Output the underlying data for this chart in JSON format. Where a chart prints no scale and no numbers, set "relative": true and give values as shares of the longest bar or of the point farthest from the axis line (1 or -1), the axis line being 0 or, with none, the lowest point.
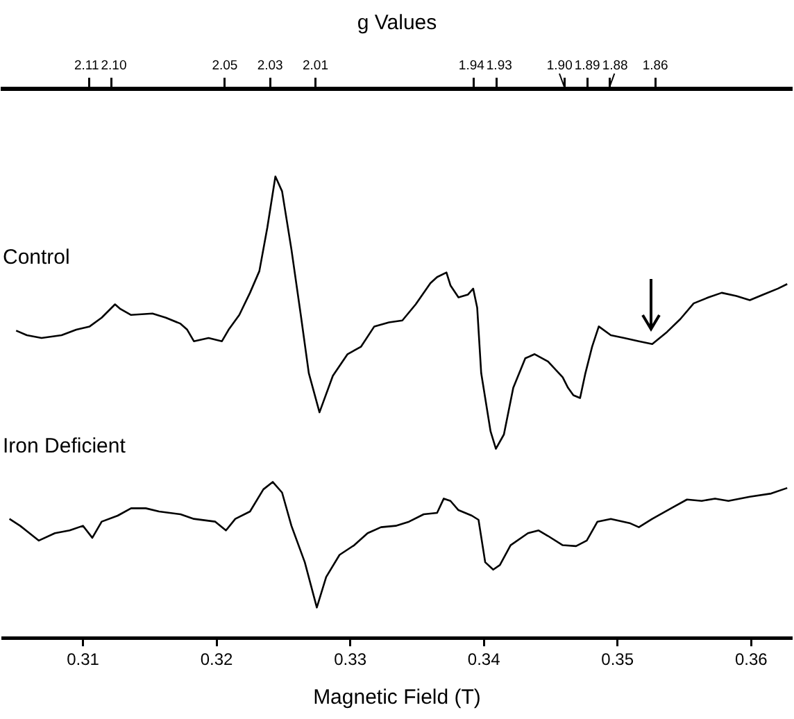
{
  "chart_data": {
    "type": "line",
    "relative": true,
    "x2label": "g Values",
    "xlabel": "Magnetic Field (T)",
    "marker": "none",
    "line_style": "solid",
    "xlim": [
      0.304,
      0.363
    ],
    "xticks": [
      {
        "value": 0.31,
        "label": "0.31"
      },
      {
        "value": 0.32,
        "label": "0.32"
      },
      {
        "value": 0.33,
        "label": "0.33"
      },
      {
        "value": 0.34,
        "label": "0.34"
      },
      {
        "value": 0.35,
        "label": "0.35"
      },
      {
        "value": 0.36,
        "label": "0.36"
      }
    ],
    "x2lim": [
      2.148,
      1.8
    ],
    "x2ticks": [
      {
        "value": 2.11,
        "label": "2.11"
      },
      {
        "value": 2.1,
        "label": "2.10"
      },
      {
        "value": 2.05,
        "label": "2.05"
      },
      {
        "value": 2.03,
        "label": "2.03"
      },
      {
        "value": 2.01,
        "label": "2.01"
      },
      {
        "value": 1.94,
        "label": "1.94"
      },
      {
        "value": 1.93,
        "label": "1.93"
      },
      {
        "value": 1.9,
        "label": "1.90"
      },
      {
        "value": 1.89,
        "label": "1.89"
      },
      {
        "value": 1.88,
        "label": "1.88"
      },
      {
        "value": 1.86,
        "label": "1.86"
      }
    ],
    "series": [
      {
        "name": "Control",
        "color": "#000000",
        "x": [
          0.305,
          0.3058,
          0.3069,
          0.3084,
          0.3095,
          0.3105,
          0.3114,
          0.3124,
          0.3128,
          0.3136,
          0.3152,
          0.3162,
          0.3173,
          0.3178,
          0.3183,
          0.3194,
          0.3204,
          0.3209,
          0.3217,
          0.3225,
          0.3232,
          0.3238,
          0.3244,
          0.3249,
          0.3256,
          0.3263,
          0.3269,
          0.3277,
          0.3287,
          0.3298,
          0.3308,
          0.3318,
          0.3329,
          0.3339,
          0.3349,
          0.336,
          0.3365,
          0.3372,
          0.3375,
          0.3381,
          0.3388,
          0.3392,
          0.3395,
          0.3398,
          0.3405,
          0.3409,
          0.3415,
          0.3422,
          0.3431,
          0.3438,
          0.3448,
          0.3459,
          0.3463,
          0.3467,
          0.3472,
          0.3476,
          0.3481,
          0.3486,
          0.3495,
          0.3505,
          0.3516,
          0.3526,
          0.3537,
          0.3547,
          0.3557,
          0.3568,
          0.3578,
          0.3589,
          0.3599,
          0.3609,
          0.362,
          0.3627
        ],
        "values": [
          0.666,
          0.656,
          0.65,
          0.656,
          0.668,
          0.675,
          0.694,
          0.723,
          0.713,
          0.7,
          0.703,
          0.694,
          0.681,
          0.668,
          0.643,
          0.65,
          0.643,
          0.668,
          0.7,
          0.748,
          0.795,
          0.89,
          1.0,
          0.968,
          0.842,
          0.7,
          0.574,
          0.489,
          0.568,
          0.615,
          0.631,
          0.675,
          0.684,
          0.688,
          0.723,
          0.769,
          0.782,
          0.792,
          0.764,
          0.738,
          0.744,
          0.757,
          0.716,
          0.574,
          0.448,
          0.41,
          0.441,
          0.542,
          0.606,
          0.615,
          0.599,
          0.565,
          0.542,
          0.526,
          0.52,
          0.574,
          0.631,
          0.675,
          0.656,
          0.65,
          0.643,
          0.637,
          0.663,
          0.691,
          0.725,
          0.738,
          0.748,
          0.741,
          0.732,
          0.744,
          0.757,
          0.767
        ]
      },
      {
        "name": "Iron Deficient",
        "color": "#000000",
        "x": [
          0.3045,
          0.3053,
          0.3067,
          0.3079,
          0.309,
          0.31,
          0.3107,
          0.3114,
          0.3126,
          0.3136,
          0.3147,
          0.3157,
          0.3173,
          0.3183,
          0.3199,
          0.3207,
          0.3214,
          0.3225,
          0.3235,
          0.3242,
          0.3249,
          0.3256,
          0.3266,
          0.3275,
          0.3282,
          0.3292,
          0.3303,
          0.3313,
          0.3323,
          0.3334,
          0.3344,
          0.3355,
          0.3365,
          0.337,
          0.3375,
          0.3381,
          0.3391,
          0.3396,
          0.3401,
          0.3407,
          0.3412,
          0.342,
          0.3433,
          0.3441,
          0.3448,
          0.3459,
          0.3469,
          0.3477,
          0.3485,
          0.3495,
          0.3509,
          0.3516,
          0.3526,
          0.3542,
          0.3552,
          0.3563,
          0.3573,
          0.3583,
          0.3599,
          0.3615,
          0.3627
        ],
        "values": [
          0.258,
          0.243,
          0.211,
          0.227,
          0.233,
          0.243,
          0.217,
          0.252,
          0.265,
          0.281,
          0.281,
          0.274,
          0.268,
          0.258,
          0.252,
          0.233,
          0.258,
          0.274,
          0.322,
          0.338,
          0.315,
          0.243,
          0.164,
          0.066,
          0.132,
          0.18,
          0.201,
          0.227,
          0.24,
          0.243,
          0.252,
          0.268,
          0.271,
          0.302,
          0.297,
          0.277,
          0.265,
          0.256,
          0.164,
          0.148,
          0.158,
          0.201,
          0.227,
          0.233,
          0.221,
          0.201,
          0.199,
          0.211,
          0.252,
          0.258,
          0.249,
          0.24,
          0.258,
          0.284,
          0.3,
          0.297,
          0.302,
          0.297,
          0.306,
          0.313,
          0.325
        ]
      }
    ]
  }
}
